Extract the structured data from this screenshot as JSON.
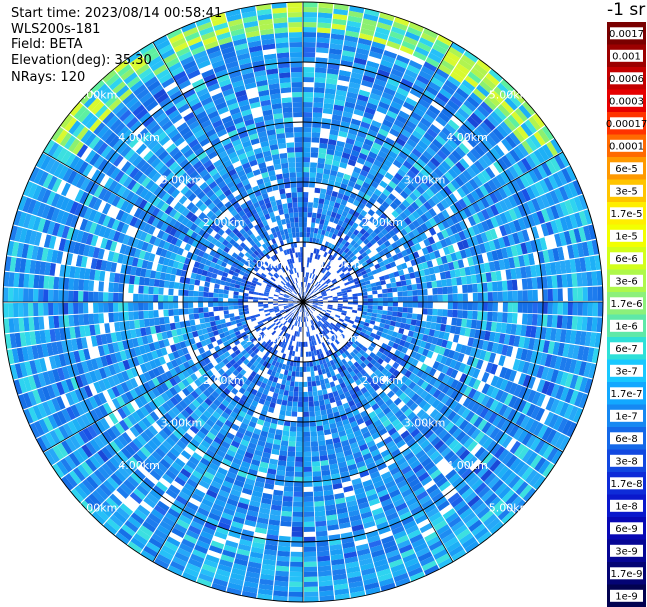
{
  "info": {
    "start_time": "Start time: 2023/08/14 00:58:41",
    "station": "WLS200s-181",
    "field": "Field: BETA",
    "elevation": "Elevation(deg): 35.30",
    "nrays": "NRays: 120"
  },
  "colorbar": {
    "unit_label": "-1 sr",
    "labels": [
      "0.0017",
      "0.001",
      "0.0006",
      "0.0003",
      "0.00017",
      "0.0001",
      "6e-5",
      "3e-5",
      "1.7e-5",
      "1e-5",
      "6e-6",
      "3e-6",
      "1.7e-6",
      "1e-6",
      "6e-7",
      "3e-7",
      "1.7e-7",
      "1e-7",
      "6e-8",
      "3e-8",
      "1.7e-8",
      "1e-8",
      "6e-9",
      "3e-9",
      "1.7e-9",
      "1e-9"
    ],
    "colors": [
      "#7a0000",
      "#9c0000",
      "#c40000",
      "#e60000",
      "#ff3300",
      "#ff6a00",
      "#ff9900",
      "#ffc400",
      "#ffee00",
      "#f2ff00",
      "#d2ff1a",
      "#aef84a",
      "#8cf07a",
      "#5ee8a8",
      "#2ee0d8",
      "#18c8ff",
      "#12a8ff",
      "#1688f2",
      "#1468e8",
      "#1248e0",
      "#0e2cd8",
      "#0a18cc",
      "#0808b4",
      "#060694",
      "#040474",
      "#020250"
    ]
  },
  "chart_data": {
    "type": "ppi",
    "field": "BETA",
    "nrays": 120,
    "range_rings_km": [
      1.0,
      2.0,
      3.0,
      4.0,
      5.0
    ],
    "ring_labels": [
      "1.00km",
      "2.00km",
      "3.00km",
      "4.00km",
      "5.00km"
    ],
    "max_range_km": 5.0,
    "azimuth_spokes_deg": [
      0,
      30,
      60,
      90,
      120,
      150,
      180,
      210,
      240,
      270,
      300,
      330
    ],
    "value_scale": "log",
    "value_range": [
      1e-09,
      0.0017
    ]
  }
}
